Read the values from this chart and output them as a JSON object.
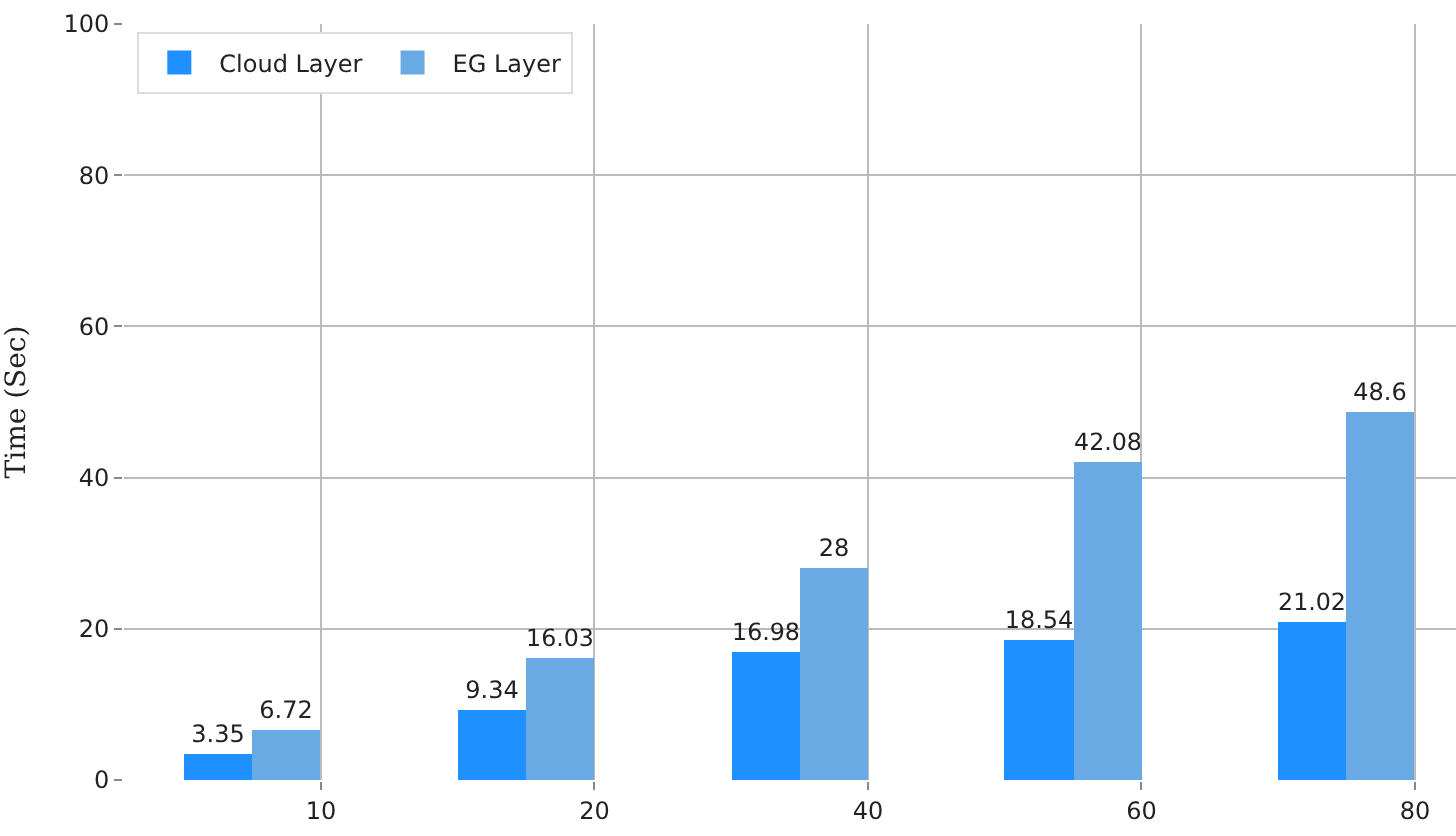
{
  "chart_data": {
    "type": "bar",
    "ylabel": "Time (Sec)",
    "categories": [
      "10",
      "20",
      "40",
      "60",
      "80"
    ],
    "series": [
      {
        "name": "Cloud Layer",
        "color": "#1e90ff",
        "values": [
          3.35,
          9.34,
          16.98,
          18.54,
          21.02
        ]
      },
      {
        "name": "EG Layer",
        "color": "#6aaae4",
        "values": [
          6.72,
          16.03,
          28,
          42.08,
          48.6
        ]
      }
    ],
    "ylim": [
      0,
      100
    ],
    "yticks": [
      0,
      20,
      40,
      60,
      80,
      100
    ],
    "grid": true,
    "legend": "top left",
    "data_labels": true
  }
}
